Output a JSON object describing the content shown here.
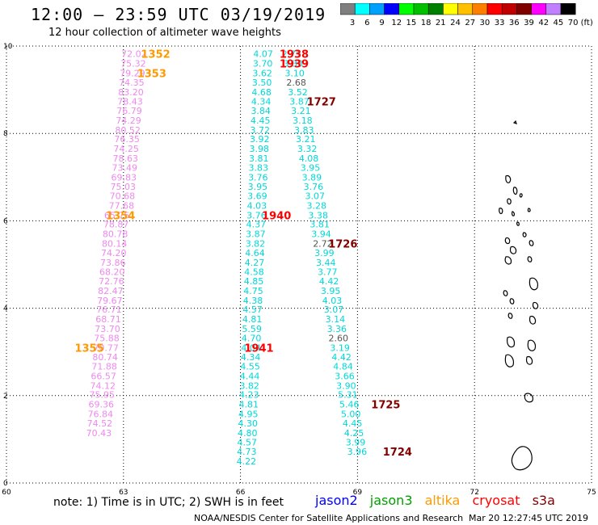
{
  "header": {
    "title": "12:00 – 23:59 UTC 03/19/2019",
    "subtitle": "12 hour collection of altimeter wave heights"
  },
  "colorbar": {
    "colors": [
      "#7f7f7f",
      "#00ffff",
      "#00a0ff",
      "#0000ff",
      "#00ff00",
      "#00c000",
      "#008000",
      "#ffff00",
      "#ffc000",
      "#ff8000",
      "#ff0000",
      "#c00000",
      "#800000",
      "#ff00ff",
      "#c080ff",
      "#000000"
    ],
    "labels": [
      "3",
      "6",
      "9",
      "12",
      "15",
      "18",
      "21",
      "24",
      "27",
      "30",
      "33",
      "36",
      "39",
      "42",
      "45",
      "70"
    ],
    "unit": "(ft)"
  },
  "chart_data": {
    "type": "scatter",
    "xlim": [
      60,
      75
    ],
    "ylim": [
      0,
      10
    ],
    "x_ticks": [
      "60",
      "63",
      "66",
      "69",
      "72",
      "75"
    ],
    "y_ticks": [
      "0",
      "2",
      "4",
      "6",
      "8",
      "10"
    ],
    "grid": true,
    "track_altika": {
      "color": "#ee88ee",
      "points": [
        {
          "x": 63.27,
          "y": 9.82,
          "v": "72.02"
        },
        {
          "x": 63.25,
          "y": 9.6,
          "v": "75.32"
        },
        {
          "x": 63.23,
          "y": 9.38,
          "v": "79.29"
        },
        {
          "x": 63.21,
          "y": 9.17,
          "v": "74.35"
        },
        {
          "x": 63.19,
          "y": 8.95,
          "v": "83.20"
        },
        {
          "x": 63.17,
          "y": 8.73,
          "v": "78.43"
        },
        {
          "x": 63.15,
          "y": 8.52,
          "v": "76.79"
        },
        {
          "x": 63.13,
          "y": 8.3,
          "v": "74.29"
        },
        {
          "x": 63.11,
          "y": 8.08,
          "v": "80.52"
        },
        {
          "x": 63.09,
          "y": 7.87,
          "v": "76.35"
        },
        {
          "x": 63.07,
          "y": 7.65,
          "v": "74.25"
        },
        {
          "x": 63.05,
          "y": 7.43,
          "v": "78.63"
        },
        {
          "x": 63.03,
          "y": 7.22,
          "v": "73.49"
        },
        {
          "x": 63.01,
          "y": 7.0,
          "v": "69.83"
        },
        {
          "x": 62.99,
          "y": 6.78,
          "v": "75.03"
        },
        {
          "x": 62.97,
          "y": 6.57,
          "v": "70.68"
        },
        {
          "x": 62.95,
          "y": 6.35,
          "v": "77.68"
        },
        {
          "x": 62.83,
          "y": 6.13,
          "v": "65.75"
        },
        {
          "x": 62.81,
          "y": 5.92,
          "v": "78.87"
        },
        {
          "x": 62.79,
          "y": 5.7,
          "v": "80.78"
        },
        {
          "x": 62.77,
          "y": 5.48,
          "v": "80.14"
        },
        {
          "x": 62.75,
          "y": 5.27,
          "v": "74.20"
        },
        {
          "x": 62.73,
          "y": 5.05,
          "v": "73.86"
        },
        {
          "x": 62.71,
          "y": 4.83,
          "v": "68.20"
        },
        {
          "x": 62.69,
          "y": 4.62,
          "v": "72.76"
        },
        {
          "x": 62.67,
          "y": 4.4,
          "v": "82.47"
        },
        {
          "x": 62.65,
          "y": 4.18,
          "v": "79.67"
        },
        {
          "x": 62.63,
          "y": 3.97,
          "v": "76.71"
        },
        {
          "x": 62.61,
          "y": 3.75,
          "v": "68.71"
        },
        {
          "x": 62.59,
          "y": 3.53,
          "v": "73.70"
        },
        {
          "x": 62.57,
          "y": 3.32,
          "v": "75.88"
        },
        {
          "x": 62.55,
          "y": 3.1,
          "v": "70.77"
        },
        {
          "x": 62.53,
          "y": 2.88,
          "v": "80.74"
        },
        {
          "x": 62.51,
          "y": 2.67,
          "v": "71.88"
        },
        {
          "x": 62.49,
          "y": 2.45,
          "v": "66.57"
        },
        {
          "x": 62.47,
          "y": 2.23,
          "v": "74.12"
        },
        {
          "x": 62.45,
          "y": 2.02,
          "v": "75.95"
        },
        {
          "x": 62.43,
          "y": 1.8,
          "v": "69.36"
        },
        {
          "x": 62.41,
          "y": 1.58,
          "v": "76.84"
        },
        {
          "x": 62.39,
          "y": 1.37,
          "v": "74.52"
        },
        {
          "x": 62.37,
          "y": 1.15,
          "v": "70.43"
        }
      ]
    },
    "track_jason3_left": {
      "color": "#00d8d8",
      "points": [
        {
          "x": 66.58,
          "y": 9.82,
          "v": "4.07"
        },
        {
          "x": 66.57,
          "y": 9.6,
          "v": "3.70"
        },
        {
          "x": 66.56,
          "y": 9.38,
          "v": "3.62"
        },
        {
          "x": 66.55,
          "y": 9.17,
          "v": "3.50"
        },
        {
          "x": 66.54,
          "y": 8.95,
          "v": "4.68"
        },
        {
          "x": 66.53,
          "y": 8.73,
          "v": "4.34"
        },
        {
          "x": 66.52,
          "y": 8.52,
          "v": "3.84"
        },
        {
          "x": 66.51,
          "y": 8.3,
          "v": "4.45"
        },
        {
          "x": 66.5,
          "y": 8.08,
          "v": "3.72"
        },
        {
          "x": 66.49,
          "y": 7.87,
          "v": "3.92"
        },
        {
          "x": 66.48,
          "y": 7.65,
          "v": "3.98"
        },
        {
          "x": 66.47,
          "y": 7.43,
          "v": "3.81"
        },
        {
          "x": 66.46,
          "y": 7.22,
          "v": "3.83"
        },
        {
          "x": 66.45,
          "y": 7.0,
          "v": "3.76"
        },
        {
          "x": 66.44,
          "y": 6.78,
          "v": "3.95"
        },
        {
          "x": 66.43,
          "y": 6.57,
          "v": "3.69"
        },
        {
          "x": 66.42,
          "y": 6.35,
          "v": "4.03"
        },
        {
          "x": 66.41,
          "y": 6.13,
          "v": "3.76"
        },
        {
          "x": 66.4,
          "y": 5.92,
          "v": "4.37"
        },
        {
          "x": 66.39,
          "y": 5.7,
          "v": "3.87"
        },
        {
          "x": 66.38,
          "y": 5.48,
          "v": "3.82"
        },
        {
          "x": 66.37,
          "y": 5.27,
          "v": "4.64"
        },
        {
          "x": 66.36,
          "y": 5.05,
          "v": "4.27"
        },
        {
          "x": 66.35,
          "y": 4.83,
          "v": "4.58"
        },
        {
          "x": 66.34,
          "y": 4.62,
          "v": "4.85"
        },
        {
          "x": 66.33,
          "y": 4.4,
          "v": "4.75"
        },
        {
          "x": 66.32,
          "y": 4.18,
          "v": "4.38"
        },
        {
          "x": 66.31,
          "y": 3.97,
          "v": "4.57"
        },
        {
          "x": 66.3,
          "y": 3.75,
          "v": "4.81"
        },
        {
          "x": 66.29,
          "y": 3.53,
          "v": "5.59"
        },
        {
          "x": 66.28,
          "y": 3.32,
          "v": "4.70"
        },
        {
          "x": 66.27,
          "y": 3.1,
          "v": "4.04"
        },
        {
          "x": 66.26,
          "y": 2.88,
          "v": "4.34"
        },
        {
          "x": 66.25,
          "y": 2.67,
          "v": "4.55"
        },
        {
          "x": 66.24,
          "y": 2.45,
          "v": "4.44"
        },
        {
          "x": 66.23,
          "y": 2.23,
          "v": "3.82"
        },
        {
          "x": 66.22,
          "y": 2.02,
          "v": "4.23"
        },
        {
          "x": 66.21,
          "y": 1.8,
          "v": "4.81"
        },
        {
          "x": 66.2,
          "y": 1.58,
          "v": "4.95"
        },
        {
          "x": 66.19,
          "y": 1.37,
          "v": "4.30"
        },
        {
          "x": 66.18,
          "y": 1.15,
          "v": "4.80"
        },
        {
          "x": 66.17,
          "y": 0.93,
          "v": "4.57"
        },
        {
          "x": 66.16,
          "y": 0.72,
          "v": "4.73"
        },
        {
          "x": 66.15,
          "y": 0.5,
          "v": "4.22"
        }
      ]
    },
    "track_jason3_right": {
      "color": "#00d8d8",
      "points": [
        {
          "x": 67.31,
          "y": 9.82,
          "v": "2.75"
        },
        {
          "x": 67.35,
          "y": 9.6,
          "v": "3.33"
        },
        {
          "x": 67.39,
          "y": 9.38,
          "v": "3.10"
        },
        {
          "x": 67.43,
          "y": 9.17,
          "v": "2.68",
          "gray": true
        },
        {
          "x": 67.47,
          "y": 8.95,
          "v": "3.52"
        },
        {
          "x": 67.51,
          "y": 8.73,
          "v": "3.87"
        },
        {
          "x": 67.55,
          "y": 8.52,
          "v": "3.21"
        },
        {
          "x": 67.59,
          "y": 8.3,
          "v": "3.18"
        },
        {
          "x": 67.63,
          "y": 8.08,
          "v": "3.83"
        },
        {
          "x": 67.67,
          "y": 7.87,
          "v": "3.21"
        },
        {
          "x": 67.71,
          "y": 7.65,
          "v": "3.32"
        },
        {
          "x": 67.75,
          "y": 7.43,
          "v": "4.08"
        },
        {
          "x": 67.79,
          "y": 7.22,
          "v": "3.95"
        },
        {
          "x": 67.83,
          "y": 7.0,
          "v": "3.89"
        },
        {
          "x": 67.87,
          "y": 6.78,
          "v": "3.76"
        },
        {
          "x": 67.91,
          "y": 6.57,
          "v": "3.07"
        },
        {
          "x": 67.95,
          "y": 6.35,
          "v": "3.28"
        },
        {
          "x": 67.99,
          "y": 6.13,
          "v": "3.38"
        },
        {
          "x": 68.03,
          "y": 5.92,
          "v": "3.81"
        },
        {
          "x": 68.07,
          "y": 5.7,
          "v": "3.94"
        },
        {
          "x": 68.11,
          "y": 5.48,
          "v": "2.72",
          "gray": true
        },
        {
          "x": 68.15,
          "y": 5.27,
          "v": "3.99"
        },
        {
          "x": 68.19,
          "y": 5.05,
          "v": "3.44"
        },
        {
          "x": 68.23,
          "y": 4.83,
          "v": "3.77"
        },
        {
          "x": 68.27,
          "y": 4.62,
          "v": "4.42"
        },
        {
          "x": 68.31,
          "y": 4.4,
          "v": "3.95"
        },
        {
          "x": 68.35,
          "y": 4.18,
          "v": "4.03"
        },
        {
          "x": 68.39,
          "y": 3.97,
          "v": "3.07"
        },
        {
          "x": 68.43,
          "y": 3.75,
          "v": "3.14"
        },
        {
          "x": 68.47,
          "y": 3.53,
          "v": "3.36"
        },
        {
          "x": 68.51,
          "y": 3.32,
          "v": "2.60",
          "gray": true
        },
        {
          "x": 68.55,
          "y": 3.1,
          "v": "3.19"
        },
        {
          "x": 68.59,
          "y": 2.88,
          "v": "4.42"
        },
        {
          "x": 68.63,
          "y": 2.67,
          "v": "4.84"
        },
        {
          "x": 68.67,
          "y": 2.45,
          "v": "3.66"
        },
        {
          "x": 68.71,
          "y": 2.23,
          "v": "3.90"
        },
        {
          "x": 68.75,
          "y": 2.02,
          "v": "5.31"
        },
        {
          "x": 68.79,
          "y": 1.8,
          "v": "5.46"
        },
        {
          "x": 68.83,
          "y": 1.58,
          "v": "5.00"
        },
        {
          "x": 68.87,
          "y": 1.37,
          "v": "4.45"
        },
        {
          "x": 68.91,
          "y": 1.15,
          "v": "4.25"
        },
        {
          "x": 68.95,
          "y": 0.93,
          "v": "3.99"
        },
        {
          "x": 68.99,
          "y": 0.72,
          "v": "3.96"
        }
      ]
    },
    "time_labels": [
      {
        "x": 63.45,
        "y": 9.82,
        "t": "1352",
        "color": "#ff9900"
      },
      {
        "x": 63.35,
        "y": 9.38,
        "t": "1353",
        "color": "#ff9900"
      },
      {
        "x": 62.55,
        "y": 6.13,
        "t": "1354",
        "color": "#ff9900"
      },
      {
        "x": 61.75,
        "y": 3.1,
        "t": "1355",
        "color": "#ff9900"
      },
      {
        "x": 67.0,
        "y": 9.82,
        "t": "1938",
        "color": "#ff0000"
      },
      {
        "x": 67.0,
        "y": 9.6,
        "t": "1939",
        "color": "#ff0000"
      },
      {
        "x": 66.55,
        "y": 6.13,
        "t": "1940",
        "color": "#ff0000"
      },
      {
        "x": 66.1,
        "y": 3.1,
        "t": "1941",
        "color": "#ff0000"
      },
      {
        "x": 67.7,
        "y": 8.73,
        "t": "1727",
        "color": "#800000"
      },
      {
        "x": 68.25,
        "y": 5.48,
        "t": "1726",
        "color": "#800000"
      },
      {
        "x": 69.35,
        "y": 1.8,
        "t": "1725",
        "color": "#800000"
      },
      {
        "x": 69.65,
        "y": 0.72,
        "t": "1724",
        "color": "#800000"
      }
    ]
  },
  "footer": {
    "note": "note: 1) Time is in UTC; 2) SWH is in feet",
    "legend": [
      {
        "label": "jason2",
        "color": "#0000ff"
      },
      {
        "label": "jason3",
        "color": "#00a000"
      },
      {
        "label": "altika",
        "color": "#ff9900"
      },
      {
        "label": "cryosat",
        "color": "#ff0000"
      },
      {
        "label": "s3a",
        "color": "#800000"
      }
    ],
    "credit": "NOAA/NESDIS Center for Satellite Applications and Research",
    "timestamp": "Mar 20 12:27:45 UTC 2019"
  }
}
